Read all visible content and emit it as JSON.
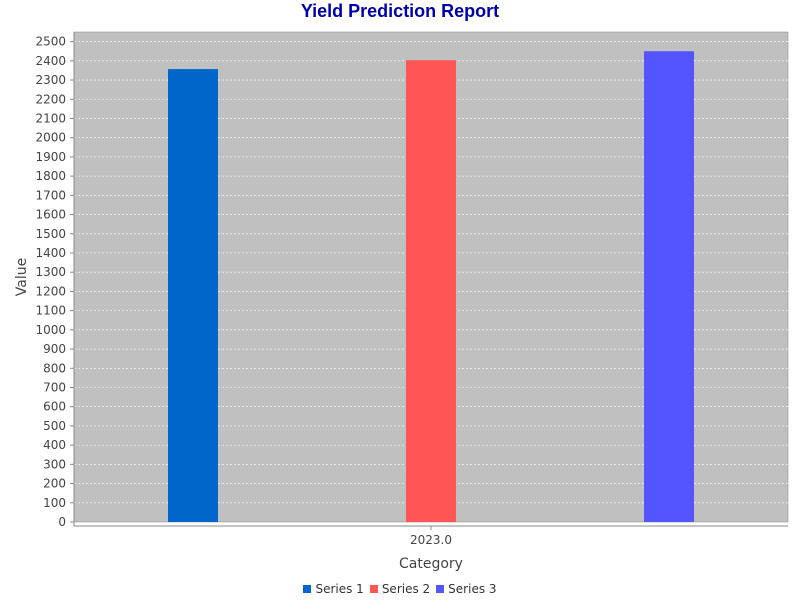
{
  "chart_data": {
    "type": "bar",
    "title": "Yield Prediction Report",
    "xlabel": "Category",
    "ylabel": "Value",
    "categories": [
      "2023.0"
    ],
    "series": [
      {
        "name": "Series 1",
        "values": [
          2357
        ],
        "color": "#0066cc"
      },
      {
        "name": "Series 2",
        "values": [
          2403
        ],
        "color": "#ff5555"
      },
      {
        "name": "Series 3",
        "values": [
          2450
        ],
        "color": "#5555ff"
      }
    ],
    "ylim": [
      0,
      2550
    ],
    "ytick_step": 100,
    "grid": true,
    "legend_position": "bottom"
  },
  "colors": {
    "title": "#0000aa",
    "plot_background": "#c0c0c0",
    "gridline": "#ffffff"
  }
}
